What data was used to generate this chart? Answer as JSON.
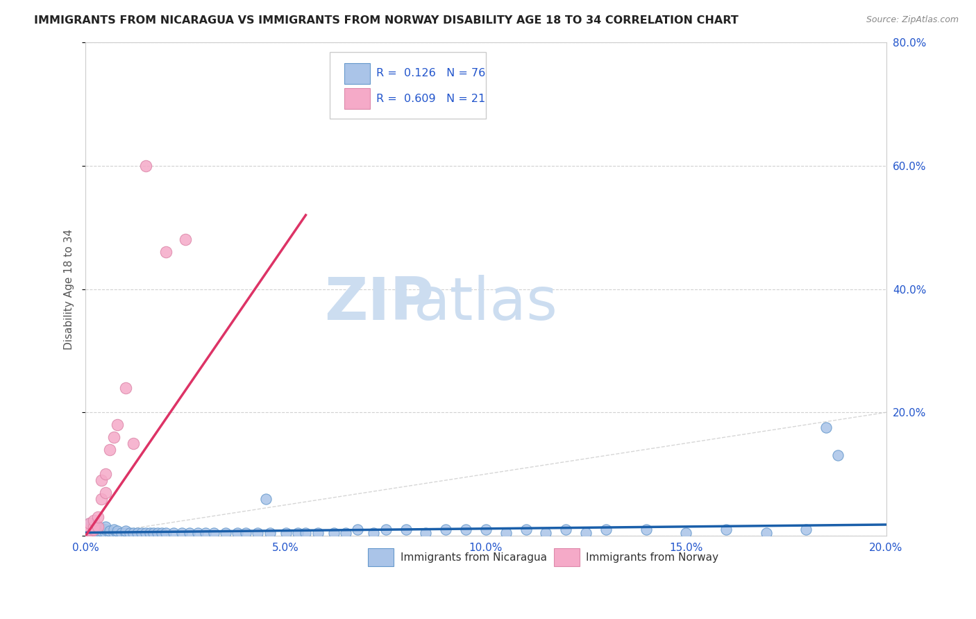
{
  "title": "IMMIGRANTS FROM NICARAGUA VS IMMIGRANTS FROM NORWAY DISABILITY AGE 18 TO 34 CORRELATION CHART",
  "source": "Source: ZipAtlas.com",
  "ylabel": "Disability Age 18 to 34",
  "xlim": [
    0.0,
    0.2
  ],
  "ylim": [
    0.0,
    0.8
  ],
  "xticks": [
    0.0,
    0.05,
    0.1,
    0.15,
    0.2
  ],
  "yticks": [
    0.0,
    0.2,
    0.4,
    0.6,
    0.8
  ],
  "xtick_labels": [
    "0.0%",
    "5.0%",
    "10.0%",
    "15.0%",
    "20.0%"
  ],
  "ytick_labels": [
    "",
    "20.0%",
    "40.0%",
    "60.0%",
    "80.0%"
  ],
  "nicaragua_color": "#aac4e8",
  "nicaragua_edge_color": "#6699cc",
  "norway_color": "#f5aac8",
  "norway_edge_color": "#dd88aa",
  "nicaragua_line_color": "#1a5faa",
  "norway_line_color": "#dd3366",
  "legend_text_color": "#2255cc",
  "legend_N_color": "#dd3366",
  "watermark_zip": "ZIP",
  "watermark_atlas": "atlas",
  "watermark_color": "#ccddf0",
  "background_color": "#ffffff",
  "grid_color": "#cccccc",
  "diag_line_color": "#cccccc",
  "nicaragua_x": [
    0.001,
    0.001,
    0.001,
    0.001,
    0.001,
    0.002,
    0.002,
    0.002,
    0.002,
    0.003,
    0.003,
    0.003,
    0.004,
    0.004,
    0.004,
    0.005,
    0.005,
    0.005,
    0.006,
    0.006,
    0.007,
    0.007,
    0.008,
    0.008,
    0.009,
    0.01,
    0.01,
    0.011,
    0.012,
    0.013,
    0.014,
    0.015,
    0.016,
    0.017,
    0.018,
    0.019,
    0.02,
    0.022,
    0.024,
    0.026,
    0.028,
    0.03,
    0.032,
    0.035,
    0.038,
    0.04,
    0.043,
    0.046,
    0.05,
    0.053,
    0.055,
    0.058,
    0.062,
    0.065,
    0.068,
    0.072,
    0.075,
    0.08,
    0.085,
    0.09,
    0.095,
    0.1,
    0.105,
    0.11,
    0.115,
    0.12,
    0.125,
    0.13,
    0.14,
    0.15,
    0.16,
    0.17,
    0.18,
    0.185,
    0.188,
    0.045
  ],
  "nicaragua_y": [
    0.005,
    0.008,
    0.01,
    0.015,
    0.02,
    0.005,
    0.008,
    0.012,
    0.018,
    0.005,
    0.01,
    0.015,
    0.005,
    0.008,
    0.012,
    0.005,
    0.01,
    0.015,
    0.005,
    0.008,
    0.005,
    0.01,
    0.005,
    0.008,
    0.005,
    0.005,
    0.008,
    0.005,
    0.005,
    0.005,
    0.005,
    0.005,
    0.005,
    0.005,
    0.005,
    0.005,
    0.005,
    0.005,
    0.005,
    0.005,
    0.005,
    0.005,
    0.005,
    0.005,
    0.005,
    0.005,
    0.005,
    0.005,
    0.005,
    0.005,
    0.005,
    0.005,
    0.005,
    0.005,
    0.01,
    0.005,
    0.01,
    0.01,
    0.005,
    0.01,
    0.01,
    0.01,
    0.005,
    0.01,
    0.005,
    0.01,
    0.005,
    0.01,
    0.01,
    0.005,
    0.01,
    0.005,
    0.01,
    0.175,
    0.13,
    0.06
  ],
  "norway_x": [
    0.001,
    0.001,
    0.001,
    0.001,
    0.002,
    0.002,
    0.002,
    0.003,
    0.003,
    0.004,
    0.004,
    0.005,
    0.005,
    0.006,
    0.007,
    0.008,
    0.01,
    0.012,
    0.015,
    0.02,
    0.025
  ],
  "norway_y": [
    0.005,
    0.008,
    0.01,
    0.02,
    0.01,
    0.015,
    0.025,
    0.015,
    0.03,
    0.06,
    0.09,
    0.07,
    0.1,
    0.14,
    0.16,
    0.18,
    0.24,
    0.15,
    0.6,
    0.46,
    0.48
  ],
  "norway_line_x": [
    0.0,
    0.055
  ],
  "norway_line_y": [
    0.0,
    0.52
  ],
  "nicaragua_line_x": [
    0.0,
    0.2
  ],
  "nicaragua_line_y": [
    0.005,
    0.018
  ]
}
